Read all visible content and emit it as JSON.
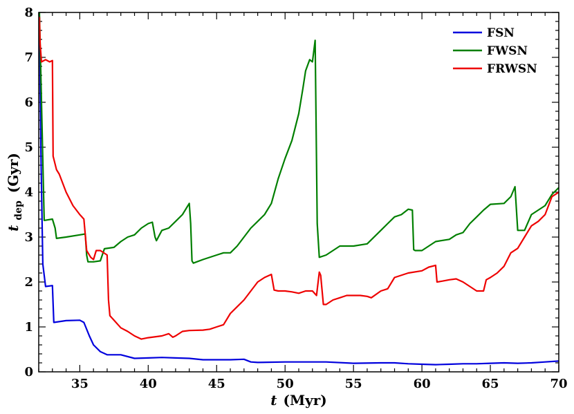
{
  "chart_data": {
    "type": "line",
    "xlabel_var": "t",
    "xlabel_unit": "(Myr)",
    "ylabel_var": "t",
    "ylabel_sub": "dep",
    "ylabel_unit": "(Gyr)",
    "xlim": [
      32,
      70
    ],
    "ylim": [
      0,
      8
    ],
    "xticks": [
      35,
      40,
      45,
      50,
      55,
      60,
      65,
      70
    ],
    "yticks": [
      0,
      1,
      2,
      3,
      4,
      5,
      6,
      7,
      8
    ],
    "xtick_labels": [
      "35",
      "40",
      "45",
      "50",
      "55",
      "60",
      "65",
      "70"
    ],
    "ytick_labels": [
      "0",
      "1",
      "2",
      "3",
      "4",
      "5",
      "6",
      "7",
      "8"
    ],
    "legend_position": "top-right",
    "series": [
      {
        "name": "FSN",
        "color": "#0000dd",
        "points": [
          [
            32.05,
            7.9
          ],
          [
            32.15,
            5.0
          ],
          [
            32.3,
            2.4
          ],
          [
            32.5,
            1.9
          ],
          [
            33.0,
            1.92
          ],
          [
            33.1,
            1.1
          ],
          [
            34.0,
            1.14
          ],
          [
            35.0,
            1.15
          ],
          [
            35.3,
            1.1
          ],
          [
            35.7,
            0.8
          ],
          [
            36.0,
            0.6
          ],
          [
            36.5,
            0.45
          ],
          [
            37.0,
            0.38
          ],
          [
            38.0,
            0.38
          ],
          [
            39.0,
            0.3
          ],
          [
            40.0,
            0.31
          ],
          [
            41.0,
            0.32
          ],
          [
            42.0,
            0.31
          ],
          [
            43.0,
            0.3
          ],
          [
            44.0,
            0.27
          ],
          [
            45.0,
            0.27
          ],
          [
            46.0,
            0.27
          ],
          [
            47.0,
            0.28
          ],
          [
            47.5,
            0.22
          ],
          [
            48.0,
            0.21
          ],
          [
            50.0,
            0.22
          ],
          [
            52.0,
            0.22
          ],
          [
            53.0,
            0.22
          ],
          [
            55.0,
            0.19
          ],
          [
            57.0,
            0.2
          ],
          [
            58.0,
            0.2
          ],
          [
            59.0,
            0.18
          ],
          [
            60.0,
            0.17
          ],
          [
            61.0,
            0.16
          ],
          [
            62.0,
            0.17
          ],
          [
            63.0,
            0.18
          ],
          [
            64.0,
            0.18
          ],
          [
            65.0,
            0.19
          ],
          [
            66.0,
            0.2
          ],
          [
            67.0,
            0.19
          ],
          [
            68.0,
            0.2
          ],
          [
            69.0,
            0.22
          ],
          [
            70.0,
            0.24
          ]
        ]
      },
      {
        "name": "FWSN",
        "color": "#007f00",
        "points": [
          [
            32.05,
            8.0
          ],
          [
            32.2,
            6.0
          ],
          [
            32.4,
            3.37
          ],
          [
            33.0,
            3.4
          ],
          [
            33.2,
            3.2
          ],
          [
            33.3,
            2.97
          ],
          [
            34.0,
            3.0
          ],
          [
            35.0,
            3.05
          ],
          [
            35.4,
            3.07
          ],
          [
            35.5,
            2.6
          ],
          [
            35.6,
            2.45
          ],
          [
            36.0,
            2.45
          ],
          [
            36.5,
            2.47
          ],
          [
            36.8,
            2.74
          ],
          [
            37.5,
            2.77
          ],
          [
            38.0,
            2.9
          ],
          [
            38.5,
            3.0
          ],
          [
            39.0,
            3.05
          ],
          [
            39.5,
            3.2
          ],
          [
            40.0,
            3.3
          ],
          [
            40.3,
            3.33
          ],
          [
            40.5,
            3.0
          ],
          [
            40.6,
            2.92
          ],
          [
            41.0,
            3.15
          ],
          [
            41.5,
            3.2
          ],
          [
            42.0,
            3.35
          ],
          [
            42.5,
            3.5
          ],
          [
            43.0,
            3.75
          ],
          [
            43.1,
            3.3
          ],
          [
            43.2,
            2.47
          ],
          [
            43.3,
            2.42
          ],
          [
            44.0,
            2.5
          ],
          [
            45.0,
            2.6
          ],
          [
            45.5,
            2.65
          ],
          [
            46.0,
            2.65
          ],
          [
            46.5,
            2.8
          ],
          [
            47.0,
            3.0
          ],
          [
            47.5,
            3.2
          ],
          [
            48.0,
            3.35
          ],
          [
            48.5,
            3.5
          ],
          [
            49.0,
            3.75
          ],
          [
            49.5,
            4.3
          ],
          [
            50.0,
            4.75
          ],
          [
            50.5,
            5.15
          ],
          [
            51.0,
            5.75
          ],
          [
            51.3,
            6.3
          ],
          [
            51.5,
            6.7
          ],
          [
            51.8,
            6.95
          ],
          [
            52.0,
            6.9
          ],
          [
            52.2,
            7.38
          ],
          [
            52.35,
            3.3
          ],
          [
            52.5,
            2.55
          ],
          [
            53.0,
            2.6
          ],
          [
            54.0,
            2.8
          ],
          [
            55.0,
            2.8
          ],
          [
            56.0,
            2.85
          ],
          [
            57.0,
            3.15
          ],
          [
            57.5,
            3.3
          ],
          [
            58.0,
            3.45
          ],
          [
            58.5,
            3.5
          ],
          [
            59.0,
            3.62
          ],
          [
            59.3,
            3.6
          ],
          [
            59.4,
            2.72
          ],
          [
            59.5,
            2.7
          ],
          [
            60.0,
            2.7
          ],
          [
            60.5,
            2.8
          ],
          [
            61.0,
            2.9
          ],
          [
            62.0,
            2.95
          ],
          [
            62.5,
            3.05
          ],
          [
            63.0,
            3.1
          ],
          [
            63.5,
            3.3
          ],
          [
            64.0,
            3.45
          ],
          [
            64.5,
            3.6
          ],
          [
            65.0,
            3.73
          ],
          [
            66.0,
            3.75
          ],
          [
            66.5,
            3.9
          ],
          [
            66.8,
            4.12
          ],
          [
            67.0,
            3.15
          ],
          [
            67.5,
            3.15
          ],
          [
            68.0,
            3.5
          ],
          [
            69.0,
            3.7
          ],
          [
            69.5,
            3.95
          ],
          [
            70.0,
            4.1
          ]
        ]
      },
      {
        "name": "FRWSN",
        "color": "#ee0000",
        "points": [
          [
            32.05,
            7.9
          ],
          [
            32.1,
            7.3
          ],
          [
            32.2,
            6.9
          ],
          [
            32.5,
            6.95
          ],
          [
            32.8,
            6.9
          ],
          [
            33.0,
            6.93
          ],
          [
            33.05,
            4.8
          ],
          [
            33.3,
            4.5
          ],
          [
            33.5,
            4.4
          ],
          [
            34.0,
            4.0
          ],
          [
            34.5,
            3.7
          ],
          [
            35.0,
            3.5
          ],
          [
            35.3,
            3.4
          ],
          [
            35.5,
            2.7
          ],
          [
            35.8,
            2.55
          ],
          [
            36.0,
            2.5
          ],
          [
            36.2,
            2.7
          ],
          [
            36.5,
            2.7
          ],
          [
            37.0,
            2.6
          ],
          [
            37.1,
            1.6
          ],
          [
            37.2,
            1.25
          ],
          [
            37.5,
            1.15
          ],
          [
            38.0,
            0.98
          ],
          [
            38.5,
            0.9
          ],
          [
            39.0,
            0.8
          ],
          [
            39.5,
            0.73
          ],
          [
            40.0,
            0.76
          ],
          [
            41.0,
            0.8
          ],
          [
            41.5,
            0.85
          ],
          [
            41.8,
            0.77
          ],
          [
            42.0,
            0.8
          ],
          [
            42.5,
            0.9
          ],
          [
            43.0,
            0.92
          ],
          [
            44.0,
            0.93
          ],
          [
            44.5,
            0.95
          ],
          [
            45.0,
            1.0
          ],
          [
            45.5,
            1.05
          ],
          [
            46.0,
            1.3
          ],
          [
            46.5,
            1.45
          ],
          [
            47.0,
            1.6
          ],
          [
            47.5,
            1.8
          ],
          [
            48.0,
            2.0
          ],
          [
            48.5,
            2.1
          ],
          [
            49.0,
            2.17
          ],
          [
            49.2,
            1.82
          ],
          [
            49.5,
            1.8
          ],
          [
            50.0,
            1.8
          ],
          [
            50.5,
            1.78
          ],
          [
            51.0,
            1.75
          ],
          [
            51.5,
            1.8
          ],
          [
            52.0,
            1.8
          ],
          [
            52.3,
            1.7
          ],
          [
            52.5,
            2.22
          ],
          [
            52.6,
            2.15
          ],
          [
            52.8,
            1.5
          ],
          [
            53.0,
            1.5
          ],
          [
            53.5,
            1.6
          ],
          [
            54.0,
            1.65
          ],
          [
            54.5,
            1.7
          ],
          [
            55.0,
            1.7
          ],
          [
            55.5,
            1.7
          ],
          [
            56.0,
            1.68
          ],
          [
            56.3,
            1.65
          ],
          [
            57.0,
            1.8
          ],
          [
            57.5,
            1.85
          ],
          [
            58.0,
            2.1
          ],
          [
            59.0,
            2.2
          ],
          [
            60.0,
            2.25
          ],
          [
            60.5,
            2.33
          ],
          [
            61.0,
            2.37
          ],
          [
            61.1,
            2.0
          ],
          [
            61.5,
            2.02
          ],
          [
            62.0,
            2.05
          ],
          [
            62.5,
            2.07
          ],
          [
            63.0,
            2.0
          ],
          [
            63.5,
            1.9
          ],
          [
            64.0,
            1.8
          ],
          [
            64.5,
            1.8
          ],
          [
            64.7,
            2.05
          ],
          [
            65.0,
            2.1
          ],
          [
            65.5,
            2.2
          ],
          [
            66.0,
            2.35
          ],
          [
            66.5,
            2.65
          ],
          [
            67.0,
            2.75
          ],
          [
            67.5,
            3.0
          ],
          [
            68.0,
            3.25
          ],
          [
            68.5,
            3.35
          ],
          [
            69.0,
            3.5
          ],
          [
            69.5,
            3.9
          ],
          [
            70.0,
            4.0
          ]
        ]
      }
    ]
  }
}
